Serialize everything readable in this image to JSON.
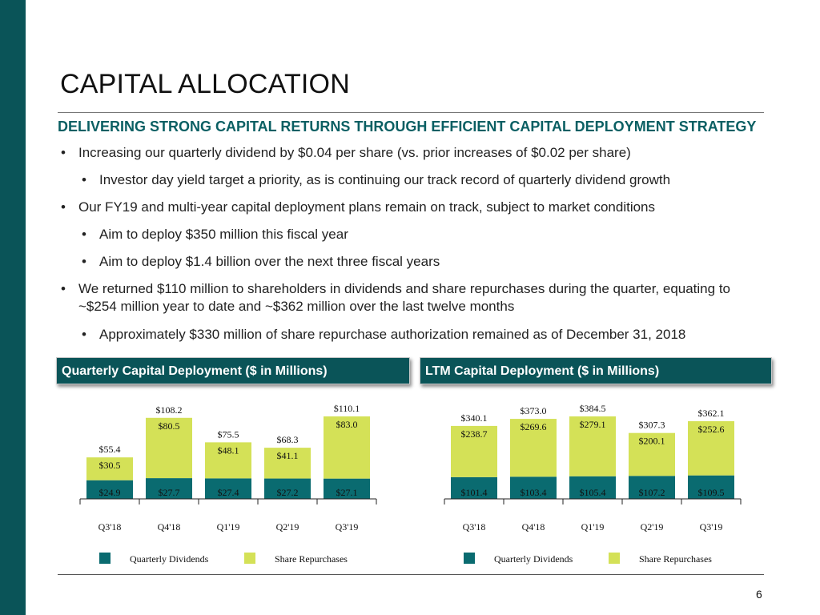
{
  "title": "CAPITAL ALLOCATION",
  "subtitle": "DELIVERING STRONG CAPITAL RETURNS THROUGH EFFICIENT CAPITAL DEPLOYMENT STRATEGY",
  "bullets": [
    {
      "level": 1,
      "lines": [
        "Increasing our quarterly dividend by $0.04 per share (vs. prior increases of $0.02 per share)"
      ]
    },
    {
      "level": 2,
      "lines": [
        "Investor day yield target a priority, as is continuing our track record of quarterly dividend growth"
      ]
    },
    {
      "level": 1,
      "lines": [
        "Our FY19 and multi-year capital deployment plans remain on track, subject to market conditions"
      ]
    },
    {
      "level": 2,
      "lines": [
        "Aim to deploy $350 million this fiscal year"
      ]
    },
    {
      "level": 2,
      "lines": [
        "Aim to deploy $1.4 billion over the next three fiscal years"
      ]
    },
    {
      "level": 1,
      "lines": [
        "We returned $110 million to shareholders in dividends and share repurchases during the quarter, equating to",
        "~$254 million year to date and ~$362 million over the last twelve months"
      ]
    },
    {
      "level": 2,
      "lines": [
        "Approximately $330 million of share repurchase authorization remained as of December 31, 2018"
      ]
    }
  ],
  "colors": {
    "dividends": "#0a6b70",
    "repurchases": "#d4e157",
    "header_bg": "#0a5458",
    "subtitle": "#0a5f63"
  },
  "page_number": "6",
  "chart_data": [
    {
      "type": "bar",
      "stacked": true,
      "title": "Quarterly Capital Deployment ($ in Millions)",
      "categories": [
        "Q3'18",
        "Q4'18",
        "Q1'19",
        "Q2'19",
        "Q3'19"
      ],
      "series": [
        {
          "name": "Quarterly Dividends",
          "values": [
            24.9,
            27.7,
            27.4,
            27.2,
            27.1
          ],
          "labels": [
            "$24.9",
            "$27.7",
            "$27.4",
            "$27.2",
            "$27.1"
          ]
        },
        {
          "name": "Share Repurchases",
          "values": [
            30.5,
            80.5,
            48.1,
            41.1,
            83.0
          ],
          "labels": [
            "$30.5",
            "$80.5",
            "$48.1",
            "$41.1",
            "$83.0"
          ]
        }
      ],
      "totals": [
        "$55.4",
        "$108.2",
        "$75.5",
        "$68.3",
        "$110.1"
      ],
      "ylim": [
        0,
        110.1
      ],
      "legend_position": "bottom",
      "grid": false
    },
    {
      "type": "bar",
      "stacked": true,
      "title": "LTM Capital Deployment ($ in Millions)",
      "categories": [
        "Q3'18",
        "Q4'18",
        "Q1'19",
        "Q2'19",
        "Q3'19"
      ],
      "series": [
        {
          "name": "Quarterly Dividends",
          "values": [
            101.4,
            103.4,
            105.4,
            107.2,
            109.5
          ],
          "labels": [
            "$101.4",
            "$103.4",
            "$105.4",
            "$107.2",
            "$109.5"
          ]
        },
        {
          "name": "Share Repurchases",
          "values": [
            238.7,
            269.6,
            279.1,
            200.1,
            252.6
          ],
          "labels": [
            "$238.7",
            "$269.6",
            "$279.1",
            "$200.1",
            "$252.6"
          ]
        }
      ],
      "totals": [
        "$340.1",
        "$373.0",
        "$384.5",
        "$307.3",
        "$362.1"
      ],
      "ylim": [
        0,
        384.5
      ],
      "legend_position": "bottom",
      "grid": false
    }
  ]
}
